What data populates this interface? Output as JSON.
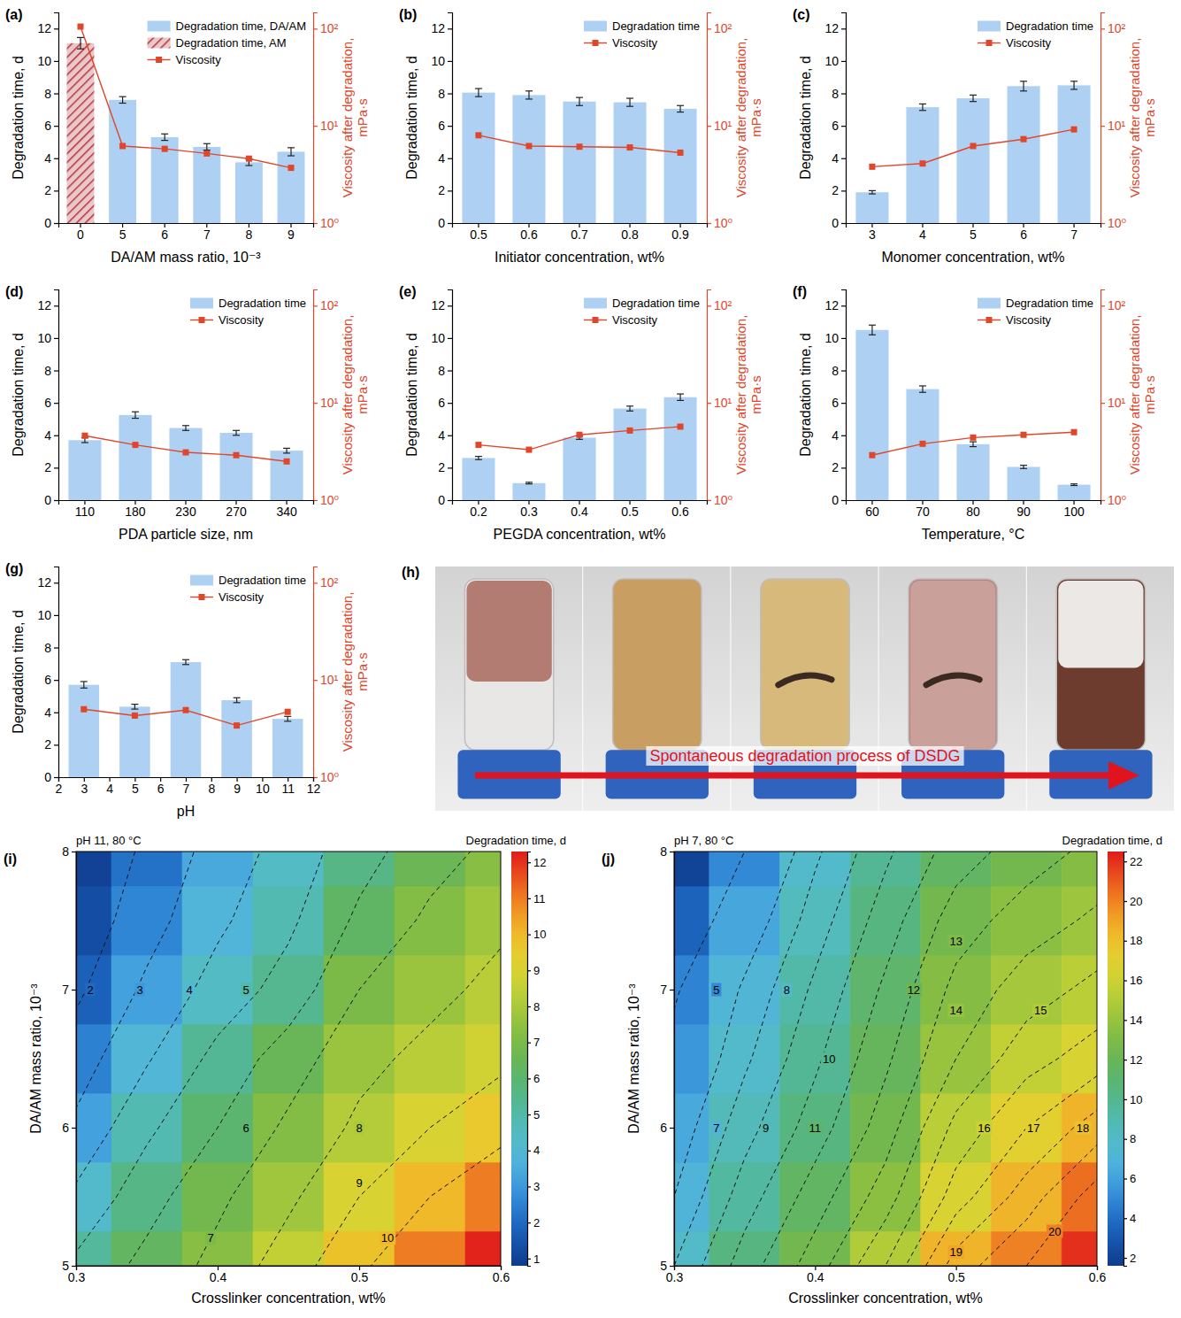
{
  "chart_data": [
    {
      "type": "bar",
      "label": "(a)",
      "x_label": "DA/AM mass ratio, 10⁻³",
      "y_label": "Degradation time, d",
      "y2_label": "Viscosity after degradation, mPa·s",
      "categories": [
        "0",
        "5",
        "6",
        "7",
        "8",
        "9"
      ],
      "ylim": [
        0,
        13
      ],
      "yticks": [
        0,
        2,
        4,
        6,
        8,
        10,
        12
      ],
      "y2lim": [
        1,
        147
      ],
      "y2ticks": [
        {
          "value": 1,
          "label": "10⁰"
        },
        {
          "value": 10,
          "label": "10¹"
        },
        {
          "value": 100,
          "label": "10²"
        }
      ],
      "log": "y2",
      "legend": "upper right",
      "series": [
        {
          "name": "Degradation time, DA/AM",
          "type": "bar",
          "color": "#aed1f3",
          "values": [
            null,
            7.6,
            5.3,
            4.7,
            3.75,
            4.4
          ],
          "errors": [
            null,
            0.2,
            0.2,
            0.2,
            0.2,
            0.25
          ]
        },
        {
          "name": "Degradation time, AM",
          "type": "bar",
          "color": "#b5363d",
          "marker": "hatch",
          "values": [
            11.1,
            null,
            null,
            null,
            null,
            null
          ],
          "errors": [
            0.35,
            null,
            null,
            null,
            null,
            null
          ]
        },
        {
          "name": "Viscosity",
          "type": "line",
          "axis": "y2",
          "color": "#e0462a",
          "marker": "square",
          "values": [
            105,
            6.2,
            5.8,
            5.2,
            4.6,
            3.7
          ]
        }
      ]
    },
    {
      "type": "bar",
      "label": "(b)",
      "x_label": "Initiator concentration, wt%",
      "y_label": "Degradation time, d",
      "y2_label": "Viscosity after degradation, mPa·s",
      "categories": [
        "0.5",
        "0.6",
        "0.7",
        "0.8",
        "0.9"
      ],
      "ylim": [
        0,
        13
      ],
      "yticks": [
        0,
        2,
        4,
        6,
        8,
        10,
        12
      ],
      "y2lim": [
        1,
        147
      ],
      "y2ticks": [
        {
          "value": 1,
          "label": "10⁰"
        },
        {
          "value": 10,
          "label": "10¹"
        },
        {
          "value": 100,
          "label": "10²"
        }
      ],
      "log": "y2",
      "legend": "upper right",
      "series": [
        {
          "name": "Degradation time",
          "type": "bar",
          "color": "#aed1f3",
          "values": [
            8.05,
            7.9,
            7.5,
            7.45,
            7.05
          ],
          "errors": [
            0.25,
            0.25,
            0.25,
            0.25,
            0.2
          ]
        },
        {
          "name": "Viscosity",
          "type": "line",
          "axis": "y2",
          "color": "#e0462a",
          "marker": "square",
          "values": [
            8.0,
            6.2,
            6.1,
            6.0,
            5.3
          ]
        }
      ]
    },
    {
      "type": "bar",
      "label": "(c)",
      "x_label": "Monomer concentration, wt%",
      "y_label": "Degradation time, d",
      "y2_label": "Viscosity after degradation, mPa·s",
      "categories": [
        "3",
        "4",
        "5",
        "6",
        "7"
      ],
      "ylim": [
        0,
        13
      ],
      "yticks": [
        0,
        2,
        4,
        6,
        8,
        10,
        12
      ],
      "y2lim": [
        1,
        147
      ],
      "y2ticks": [
        {
          "value": 1,
          "label": "10⁰"
        },
        {
          "value": 10,
          "label": "10¹"
        },
        {
          "value": 100,
          "label": "10²"
        }
      ],
      "log": "y2",
      "legend": "upper right",
      "series": [
        {
          "name": "Degradation time",
          "type": "bar",
          "color": "#aed1f3",
          "values": [
            1.9,
            7.15,
            7.7,
            8.45,
            8.5
          ],
          "errors": [
            0.1,
            0.2,
            0.2,
            0.3,
            0.25
          ]
        },
        {
          "name": "Viscosity",
          "type": "line",
          "axis": "y2",
          "color": "#e0462a",
          "marker": "square",
          "values": [
            3.8,
            4.1,
            6.2,
            7.3,
            9.2
          ]
        }
      ]
    },
    {
      "type": "bar",
      "label": "(d)",
      "x_label": "PDA particle size, nm",
      "y_label": "Degradation time, d",
      "y2_label": "Viscosity after degradation, mPa·s",
      "categories": [
        "110",
        "180",
        "230",
        "270",
        "340"
      ],
      "ylim": [
        0,
        13
      ],
      "yticks": [
        0,
        2,
        4,
        6,
        8,
        10,
        12
      ],
      "y2lim": [
        1,
        147
      ],
      "y2ticks": [
        {
          "value": 1,
          "label": "10⁰"
        },
        {
          "value": 10,
          "label": "10¹"
        },
        {
          "value": 100,
          "label": "10²"
        }
      ],
      "log": "y2",
      "legend": "upper right",
      "series": [
        {
          "name": "Degradation time",
          "type": "bar",
          "color": "#aed1f3",
          "values": [
            3.7,
            5.25,
            4.45,
            4.15,
            3.05
          ],
          "errors": [
            0.15,
            0.2,
            0.15,
            0.15,
            0.15
          ]
        },
        {
          "name": "Viscosity",
          "type": "line",
          "axis": "y2",
          "color": "#e0462a",
          "marker": "square",
          "values": [
            4.6,
            3.7,
            3.1,
            2.9,
            2.5
          ]
        }
      ]
    },
    {
      "type": "bar",
      "label": "(e)",
      "x_label": "PEGDA concentration, wt%",
      "y_label": "Degradation time, d",
      "y2_label": "Viscosity after degradation, mPa·s",
      "categories": [
        "0.2",
        "0.3",
        "0.4",
        "0.5",
        "0.6"
      ],
      "ylim": [
        0,
        13
      ],
      "yticks": [
        0,
        2,
        4,
        6,
        8,
        10,
        12
      ],
      "y2lim": [
        1,
        147
      ],
      "y2ticks": [
        {
          "value": 1,
          "label": "10⁰"
        },
        {
          "value": 10,
          "label": "10¹"
        },
        {
          "value": 100,
          "label": "10²"
        }
      ],
      "log": "y2",
      "legend": "upper right",
      "series": [
        {
          "name": "Degradation time",
          "type": "bar",
          "color": "#aed1f3",
          "values": [
            2.6,
            1.05,
            3.85,
            5.65,
            6.35
          ],
          "errors": [
            0.1,
            0.05,
            0.1,
            0.15,
            0.2
          ]
        },
        {
          "name": "Viscosity",
          "type": "line",
          "axis": "y2",
          "color": "#e0462a",
          "marker": "square",
          "values": [
            3.7,
            3.3,
            4.7,
            5.2,
            5.7
          ]
        }
      ]
    },
    {
      "type": "bar",
      "label": "(f)",
      "x_label": "Temperature, °C",
      "y_label": "Degradation time, d",
      "y2_label": "Viscosity after degradation, mPa·s",
      "categories": [
        "60",
        "70",
        "80",
        "90",
        "100"
      ],
      "ylim": [
        0,
        13
      ],
      "yticks": [
        0,
        2,
        4,
        6,
        8,
        10,
        12
      ],
      "y2lim": [
        1,
        147
      ],
      "y2ticks": [
        {
          "value": 1,
          "label": "10⁰"
        },
        {
          "value": 10,
          "label": "10¹"
        },
        {
          "value": 100,
          "label": "10²"
        }
      ],
      "log": "y2",
      "legend": "upper right",
      "series": [
        {
          "name": "Degradation time",
          "type": "bar",
          "color": "#aed1f3",
          "values": [
            10.5,
            6.85,
            3.45,
            2.05,
            0.95
          ],
          "errors": [
            0.3,
            0.2,
            0.15,
            0.1,
            0.05
          ]
        },
        {
          "name": "Viscosity",
          "type": "line",
          "axis": "y2",
          "color": "#e0462a",
          "marker": "square",
          "values": [
            2.9,
            3.8,
            4.4,
            4.7,
            5.0
          ]
        }
      ]
    },
    {
      "type": "bar",
      "label": "(g)",
      "x_label": "pH",
      "y_label": "Degradation time, d",
      "y2_label": "Viscosity after degradation, mPa·s",
      "x": [
        3,
        5,
        7,
        9,
        11
      ],
      "xlim": [
        2,
        12
      ],
      "xticks": [
        2,
        3,
        4,
        5,
        6,
        7,
        8,
        9,
        10,
        11,
        12
      ],
      "ylim": [
        0,
        13
      ],
      "yticks": [
        0,
        2,
        4,
        6,
        8,
        10,
        12
      ],
      "y2lim": [
        1,
        147
      ],
      "y2ticks": [
        {
          "value": 1,
          "label": "10⁰"
        },
        {
          "value": 10,
          "label": "10¹"
        },
        {
          "value": 100,
          "label": "10²"
        }
      ],
      "log": "y2",
      "legend": "upper right",
      "series": [
        {
          "name": "Degradation time",
          "type": "bar",
          "color": "#aed1f3",
          "values": [
            5.7,
            4.35,
            7.1,
            4.75,
            3.6
          ],
          "errors": [
            0.2,
            0.15,
            0.15,
            0.15,
            0.15
          ]
        },
        {
          "name": "Viscosity",
          "type": "line",
          "axis": "y2",
          "color": "#e0462a",
          "marker": "square",
          "values": [
            5.0,
            4.3,
            4.9,
            3.4,
            4.7
          ]
        }
      ]
    },
    {
      "type": "image",
      "label": "(h)",
      "annotation": "Spontaneous degradation process of DSDG"
    },
    {
      "type": "heatmap",
      "label": "(i)",
      "annotation": "pH 11, 80 °C",
      "x_label": "Crosslinker concentration, wt%",
      "y_label": "DA/AM mass ratio, 10⁻³",
      "x": [
        0.3,
        0.35,
        0.4,
        0.45,
        0.5,
        0.55,
        0.6
      ],
      "y": [
        5,
        5.5,
        6,
        6.5,
        7,
        7.5,
        8
      ],
      "xlim": [
        0.3,
        0.6
      ],
      "xticks": [
        0.3,
        0.4,
        0.5,
        0.6
      ],
      "ylim": [
        5,
        8
      ],
      "yticks": [
        5,
        6,
        7,
        8
      ],
      "cells": [
        [
          5.2,
          6.3,
          7.3,
          8.5,
          9.8,
          11,
          12.2
        ],
        [
          4.2,
          5.6,
          6.8,
          7.8,
          9.0,
          10,
          11
        ],
        [
          3.2,
          4.8,
          6.0,
          7.2,
          8.2,
          9.0,
          9.6
        ],
        [
          2.5,
          3.9,
          5.3,
          6.5,
          7.7,
          8.3,
          8.8
        ],
        [
          1.8,
          3.2,
          4.4,
          5.4,
          7.0,
          7.7,
          8.3
        ],
        [
          1.3,
          2.6,
          3.8,
          4.8,
          6.2,
          7.2,
          7.8
        ],
        [
          1.0,
          2.2,
          3.4,
          4.4,
          5.6,
          6.6,
          7.3
        ]
      ],
      "colorbar": {
        "title": "Degradation time, d",
        "range": [
          0.8,
          12.3
        ],
        "ticks": [
          1,
          2,
          3,
          4,
          5,
          6,
          7,
          8,
          9,
          10,
          11,
          12
        ]
      },
      "contour_labels": [
        {
          "value": 2,
          "x": 0.31,
          "y": 7
        },
        {
          "value": 3,
          "x": 0.345,
          "y": 7
        },
        {
          "value": 4,
          "x": 0.38,
          "y": 7
        },
        {
          "value": 5,
          "x": 0.42,
          "y": 7
        },
        {
          "value": 6,
          "x": 0.42,
          "y": 6
        },
        {
          "value": 7,
          "x": 0.395,
          "y": 5.2
        },
        {
          "value": 8,
          "x": 0.5,
          "y": 6
        },
        {
          "value": 9,
          "x": 0.5,
          "y": 5.6
        },
        {
          "value": 10,
          "x": 0.52,
          "y": 5.2
        }
      ]
    },
    {
      "type": "heatmap",
      "label": "(j)",
      "annotation": "pH 7, 80 °C",
      "x_label": "Crosslinker concentration, wt%",
      "y_label": "DA/AM mass ratio, 10⁻³",
      "x": [
        0.3,
        0.35,
        0.4,
        0.45,
        0.5,
        0.55,
        0.6
      ],
      "y": [
        5,
        5.5,
        6,
        6.5,
        7,
        7.5,
        8
      ],
      "xlim": [
        0.3,
        0.6
      ],
      "xticks": [
        0.3,
        0.4,
        0.5,
        0.6
      ],
      "ylim": [
        5,
        8
      ],
      "yticks": [
        5,
        6,
        7,
        8
      ],
      "cells": [
        [
          8.0,
          10.5,
          12.5,
          15,
          18.5,
          20,
          22
        ],
        [
          7.0,
          9.5,
          11.5,
          13.5,
          16.5,
          18.5,
          20.5
        ],
        [
          6.3,
          8.6,
          10.5,
          12.5,
          15.3,
          17,
          18.5
        ],
        [
          5.5,
          7.8,
          9.8,
          11.8,
          14,
          15.6,
          16.5
        ],
        [
          4.8,
          7.2,
          9.2,
          11.2,
          13.3,
          14.5,
          15.3
        ],
        [
          3.5,
          6.2,
          8.5,
          10.5,
          12.5,
          13.5,
          14.2
        ],
        [
          2.0,
          5.0,
          7.8,
          9.8,
          11.5,
          12.5,
          13.3
        ]
      ],
      "colorbar": {
        "title": "Degradation time, d",
        "range": [
          1.6,
          22.5
        ],
        "ticks": [
          2,
          4,
          6,
          8,
          10,
          12,
          14,
          16,
          18,
          20,
          22
        ]
      },
      "contour_labels": [
        {
          "value": 5,
          "x": 0.33,
          "y": 7
        },
        {
          "value": 7,
          "x": 0.33,
          "y": 6
        },
        {
          "value": 8,
          "x": 0.38,
          "y": 7
        },
        {
          "value": 9,
          "x": 0.365,
          "y": 6
        },
        {
          "value": 10,
          "x": 0.41,
          "y": 6.5
        },
        {
          "value": 11,
          "x": 0.4,
          "y": 6
        },
        {
          "value": 12,
          "x": 0.47,
          "y": 7
        },
        {
          "value": 13,
          "x": 0.5,
          "y": 7.35
        },
        {
          "value": 14,
          "x": 0.5,
          "y": 6.85
        },
        {
          "value": 15,
          "x": 0.56,
          "y": 6.85
        },
        {
          "value": 16,
          "x": 0.52,
          "y": 6
        },
        {
          "value": 17,
          "x": 0.555,
          "y": 6
        },
        {
          "value": 18,
          "x": 0.59,
          "y": 6
        },
        {
          "value": 19,
          "x": 0.5,
          "y": 5.1
        },
        {
          "value": 20,
          "x": 0.57,
          "y": 5.25
        }
      ]
    }
  ]
}
